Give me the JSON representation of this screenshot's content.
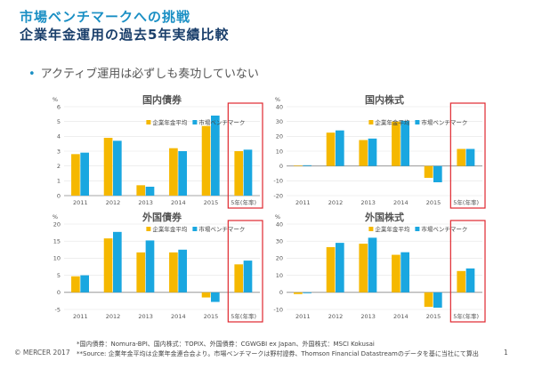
{
  "header": {
    "title_line1": "市場ベンチマークへの挑戦",
    "title_line2": "企業年金運用の過去5年実績比較",
    "bullet": "アクティブ運用は必ずしも奏功していない"
  },
  "colors": {
    "pension": "#f5b800",
    "benchmark": "#1aa7e0",
    "highlight": "#e0272e"
  },
  "legend": {
    "pension": "企業年金平均",
    "benchmark": "市場ベンチマーク"
  },
  "chart_data": [
    {
      "type": "bar",
      "title": "国内債券",
      "ylabel": "%",
      "categories": [
        "2011",
        "2012",
        "2013",
        "2014",
        "2015",
        "5年(年率)"
      ],
      "series": [
        {
          "name": "企業年金平均",
          "values": [
            2.8,
            3.9,
            0.7,
            3.2,
            4.7,
            3.0
          ]
        },
        {
          "name": "市場ベンチマーク",
          "values": [
            2.9,
            3.7,
            0.6,
            3.0,
            5.4,
            3.1
          ]
        }
      ],
      "ylim": [
        0,
        6
      ],
      "yticks": [
        0,
        1,
        2,
        3,
        4,
        5,
        6
      ],
      "highlight": "5年(年率)"
    },
    {
      "type": "bar",
      "title": "国内株式",
      "ylabel": "%",
      "categories": [
        "2011",
        "2012",
        "2013",
        "2014",
        "2015",
        "5年(年率)"
      ],
      "series": [
        {
          "name": "企業年金平均",
          "values": [
            0.3,
            22.5,
            17.5,
            30.0,
            -8.0,
            11.5
          ]
        },
        {
          "name": "市場ベンチマーク",
          "values": [
            0.5,
            24.0,
            18.5,
            30.5,
            -11.0,
            11.5
          ]
        }
      ],
      "ylim": [
        -20,
        40
      ],
      "yticks": [
        -20,
        -10,
        0,
        10,
        20,
        30,
        40
      ],
      "highlight": "5年(年率)"
    },
    {
      "type": "bar",
      "title": "外国債券",
      "ylabel": "%",
      "categories": [
        "2011",
        "2012",
        "2013",
        "2014",
        "2015",
        "5年(年率)"
      ],
      "series": [
        {
          "name": "企業年金平均",
          "values": [
            4.7,
            15.8,
            11.7,
            11.7,
            -1.5,
            8.2
          ]
        },
        {
          "name": "市場ベンチマーク",
          "values": [
            5.0,
            17.7,
            15.2,
            12.5,
            -2.8,
            9.3
          ]
        }
      ],
      "ylim": [
        -5,
        20
      ],
      "yticks": [
        -5,
        0,
        5,
        10,
        15,
        20
      ],
      "highlight": "5年(年率)"
    },
    {
      "type": "bar",
      "title": "外国株式",
      "ylabel": "%",
      "categories": [
        "2011",
        "2012",
        "2013",
        "2014",
        "2015",
        "5年(年率)"
      ],
      "series": [
        {
          "name": "企業年金平均",
          "values": [
            -1.0,
            26.5,
            28.5,
            22.0,
            -8.5,
            12.5
          ]
        },
        {
          "name": "市場ベンチマーク",
          "values": [
            -0.5,
            29.0,
            32.0,
            23.5,
            -9.0,
            14.0
          ]
        }
      ],
      "ylim": [
        -10,
        40
      ],
      "yticks": [
        -10,
        0,
        10,
        20,
        30,
        40
      ],
      "highlight": "5年(年率)"
    }
  ],
  "footer": {
    "note1": "*国内債券：Nomura-BPI、国内株式：TOPIX、外国債券：CGWGBI ex Japan、外国株式：MSCI Kokusai",
    "note2": "**Source: 企業年金平均は企業年金連合会より。市場ベンチマークは野村證券、Thomson Financial Datastreamのデータを基に当社にて算出",
    "copyright": "© MERCER 2017",
    "page": "1"
  }
}
